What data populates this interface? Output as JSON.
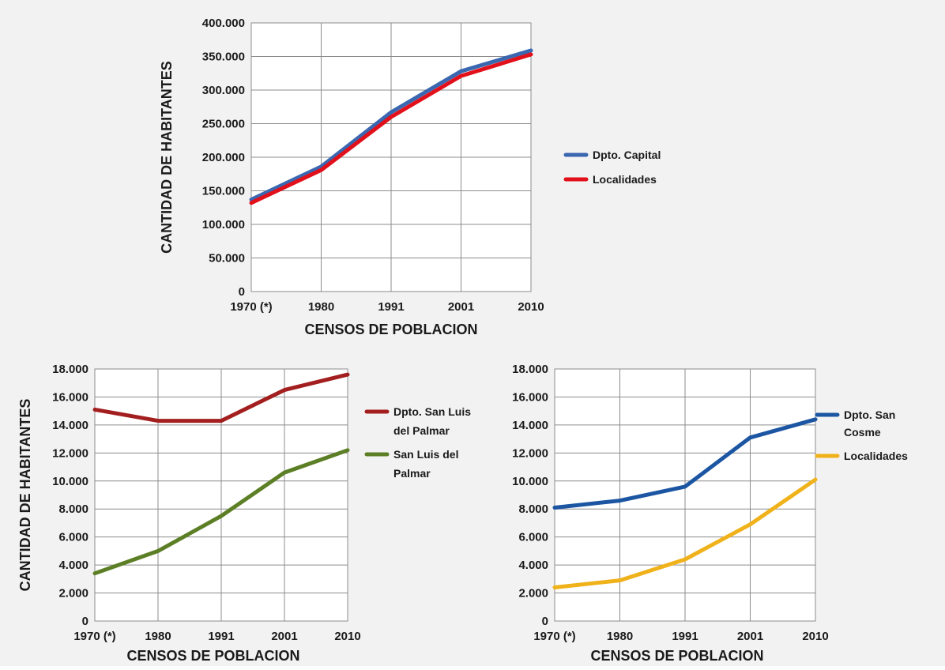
{
  "colors": {
    "background": "#f2f2f2",
    "plot_background": "#ffffff",
    "grid": "#8c8c8c",
    "text": "#1a1a1a"
  },
  "chart_data": [
    {
      "type": "line",
      "categories": [
        "1970 (*)",
        "1980",
        "1991",
        "2001",
        "2010"
      ],
      "series": [
        {
          "name": "Dpto. Capital",
          "color": "#3a67b0",
          "values": [
            137000,
            186000,
            267000,
            328000,
            359000
          ]
        },
        {
          "name": "Localidades",
          "color": "#e2101b",
          "values": [
            132000,
            181000,
            260000,
            321000,
            353000
          ]
        }
      ],
      "ylabel": "CANTIDAD DE HABITANTES",
      "xlabel": "CENSOS DE POBLACION",
      "ylim": [
        0,
        400000
      ],
      "yticks": [
        "0",
        "50.000",
        "100.000",
        "150.000",
        "200.000",
        "250.000",
        "300.000",
        "350.000",
        "400.000"
      ],
      "grid": true,
      "legend": "right"
    },
    {
      "type": "line",
      "categories": [
        "1970 (*)",
        "1980",
        "1991",
        "2001",
        "2010"
      ],
      "series": [
        {
          "name_lines": [
            "Dpto. San Luis",
            "del Palmar"
          ],
          "color": "#a31f1f",
          "values": [
            15100,
            14300,
            14300,
            16500,
            17600
          ]
        },
        {
          "name_lines": [
            "San Luis del",
            "Palmar"
          ],
          "color": "#5c7f26",
          "values": [
            3400,
            5000,
            7500,
            10600,
            12200
          ]
        }
      ],
      "ylabel": "CANTIDAD DE HABITANTES",
      "xlabel": "CENSOS DE POBLACION",
      "ylim": [
        0,
        18000
      ],
      "yticks": [
        "0",
        "2.000",
        "4.000",
        "6.000",
        "8.000",
        "10.000",
        "12.000",
        "14.000",
        "16.000",
        "18.000"
      ],
      "grid": true,
      "legend": "right"
    },
    {
      "type": "line",
      "categories": [
        "1970 (*)",
        "1980",
        "1991",
        "2001",
        "2010"
      ],
      "series": [
        {
          "name_lines": [
            "Dpto. San",
            "Cosme"
          ],
          "color": "#1c56a3",
          "values": [
            8100,
            8600,
            9600,
            13100,
            14400
          ]
        },
        {
          "name_lines": [
            "Localidades"
          ],
          "color": "#f0b21a",
          "values": [
            2400,
            2900,
            4400,
            6900,
            10100
          ]
        }
      ],
      "ylabel": "",
      "xlabel": "CENSOS DE POBLACION",
      "ylim": [
        0,
        18000
      ],
      "yticks": [
        "0",
        "2.000",
        "4.000",
        "6.000",
        "8.000",
        "10.000",
        "12.000",
        "14.000",
        "16.000",
        "18.000"
      ],
      "grid": true,
      "legend": "right"
    }
  ]
}
